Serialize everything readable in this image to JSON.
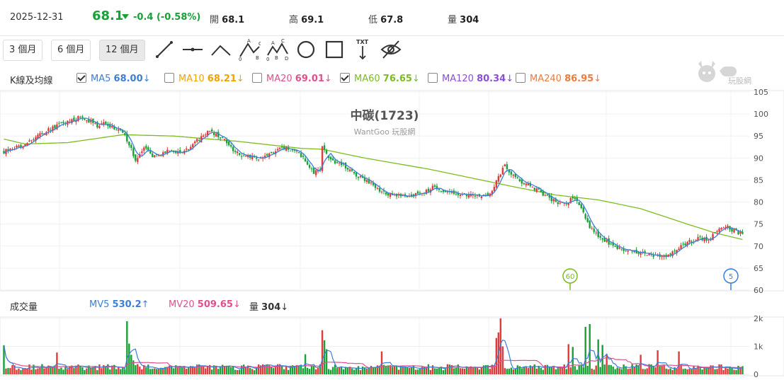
{
  "header": {
    "date": "2025-12-31",
    "price": "68.1",
    "change": "-0.4 (-0.58%)",
    "open_label": "開",
    "open": "68.1",
    "high_label": "高",
    "high": "69.1",
    "low_label": "低",
    "low": "67.8",
    "volume_label": "量",
    "volume": "304",
    "down_color": "#1aa037",
    "up_color": "#e03b3b"
  },
  "toolbar": {
    "ranges": [
      "3 個月",
      "6 個月",
      "12 個月"
    ],
    "active_range": "12 個月",
    "tools": [
      "line-icon",
      "horizontal-line-icon",
      "trend-angle-icon",
      "abc-pattern-icon",
      "abcd-pattern-icon",
      "circle-icon",
      "rectangle-icon",
      "text-arrow-icon",
      "hide-icon"
    ],
    "abc_letters": [
      "A",
      "0",
      "B",
      "C"
    ],
    "abcd_letters": [
      "A",
      "C",
      "0",
      "B",
      "D"
    ],
    "text_tool_label": "TXT"
  },
  "logo_text": "玩股網",
  "ma_panel": {
    "title": "K線及均線",
    "items": [
      {
        "label": "MA5",
        "value": "68.00",
        "arrow": "↓",
        "checked": true,
        "color": "#3b7fd8"
      },
      {
        "label": "MA10",
        "value": "68.21",
        "arrow": "↓",
        "checked": false,
        "color": "#f0a400"
      },
      {
        "label": "MA20",
        "value": "69.01",
        "arrow": "↓",
        "checked": false,
        "color": "#e0508f"
      },
      {
        "label": "MA60",
        "value": "76.65",
        "arrow": "↓",
        "checked": true,
        "color": "#7cbd1e"
      },
      {
        "label": "MA120",
        "value": "80.34",
        "arrow": "↓",
        "checked": false,
        "color": "#8a4fd6"
      },
      {
        "label": "MA240",
        "value": "86.95",
        "arrow": "↓",
        "checked": false,
        "color": "#f07a3a"
      }
    ]
  },
  "volume_panel": {
    "title": "成交量",
    "items": [
      {
        "label": "MV5",
        "value": "530.2",
        "arrow": "↑",
        "color": "#3b7fd8"
      },
      {
        "label": "MV20",
        "value": "509.65",
        "arrow": "↓",
        "color": "#e0508f"
      },
      {
        "label": "量",
        "value": "304",
        "arrow": "↓",
        "color": "#333333"
      }
    ]
  },
  "chart_data": {
    "type": "candlestick",
    "title": "中碳(1723)",
    "subtitle": "WantGoo 玩股網",
    "price_axis": {
      "ticks": [
        105,
        100,
        95,
        90,
        85,
        80,
        75,
        70,
        65,
        60
      ],
      "ylim": [
        60,
        105
      ]
    },
    "volume_axis": {
      "ticks": [
        "2k",
        "1k",
        "0"
      ],
      "ylim": [
        0,
        2000
      ]
    },
    "grid": true,
    "markers": [
      {
        "label": "60",
        "color": "#7cbd1e"
      },
      {
        "label": "5",
        "color": "#3b7fd8"
      }
    ],
    "close_path": [
      [
        0,
        91.5
      ],
      [
        10,
        93
      ],
      [
        18,
        95.5
      ],
      [
        24,
        97.2
      ],
      [
        30,
        98.2
      ],
      [
        36,
        99.5
      ],
      [
        40,
        98.5
      ],
      [
        44,
        97.4
      ],
      [
        48,
        97.8
      ],
      [
        52,
        96.8
      ],
      [
        56,
        96
      ],
      [
        58,
        94
      ],
      [
        60,
        92
      ],
      [
        62,
        89.5
      ],
      [
        64,
        90.5
      ],
      [
        66,
        92.5
      ],
      [
        70,
        90.5
      ],
      [
        74,
        91
      ],
      [
        78,
        91.8
      ],
      [
        82,
        91.3
      ],
      [
        86,
        91.8
      ],
      [
        90,
        93.5
      ],
      [
        96,
        95.8
      ],
      [
        100,
        95.4
      ],
      [
        104,
        94.2
      ],
      [
        108,
        92
      ],
      [
        112,
        90.5
      ],
      [
        118,
        90.2
      ],
      [
        122,
        90
      ],
      [
        126,
        91.5
      ],
      [
        130,
        92
      ],
      [
        134,
        92.2
      ],
      [
        138,
        91.8
      ],
      [
        142,
        89.3
      ],
      [
        146,
        86.8
      ],
      [
        149,
        87
      ],
      [
        150,
        93
      ],
      [
        152,
        91
      ],
      [
        154,
        89.5
      ],
      [
        156,
        88.8
      ],
      [
        160,
        88.3
      ],
      [
        166,
        86
      ],
      [
        172,
        84.5
      ],
      [
        176,
        83
      ],
      [
        180,
        81.8
      ],
      [
        190,
        81.5
      ],
      [
        198,
        82.2
      ],
      [
        202,
        83.5
      ],
      [
        206,
        82.5
      ],
      [
        212,
        82
      ],
      [
        222,
        81.5
      ],
      [
        228,
        81.8
      ],
      [
        230,
        82.2
      ],
      [
        232,
        85
      ],
      [
        234,
        86.5
      ],
      [
        236,
        88.5
      ],
      [
        238,
        86.5
      ],
      [
        240,
        86
      ],
      [
        244,
        84.5
      ],
      [
        248,
        83.7
      ],
      [
        252,
        82.5
      ],
      [
        258,
        80.5
      ],
      [
        264,
        79.5
      ],
      [
        268,
        80.8
      ],
      [
        272,
        79
      ],
      [
        274,
        76.5
      ],
      [
        276,
        74.5
      ],
      [
        280,
        72
      ],
      [
        286,
        70.5
      ],
      [
        290,
        69.5
      ],
      [
        294,
        69
      ],
      [
        300,
        68.5
      ],
      [
        306,
        68
      ],
      [
        310,
        67.5
      ],
      [
        314,
        68
      ],
      [
        318,
        69.5
      ],
      [
        322,
        70.8
      ],
      [
        328,
        71.8
      ],
      [
        332,
        71.5
      ],
      [
        334,
        72.5
      ],
      [
        336,
        73.5
      ],
      [
        340,
        74.5
      ],
      [
        342,
        74
      ],
      [
        344,
        73.5
      ],
      [
        346,
        73
      ],
      [
        348,
        72.8
      ]
    ],
    "ma60_path": [
      [
        0,
        94.3
      ],
      [
        10,
        93.2
      ],
      [
        30,
        93.5
      ],
      [
        56,
        95.3
      ],
      [
        80,
        95
      ],
      [
        110,
        93.8
      ],
      [
        140,
        92.2
      ],
      [
        150,
        92
      ],
      [
        170,
        90
      ],
      [
        200,
        87.5
      ],
      [
        220,
        85.5
      ],
      [
        240,
        83.5
      ],
      [
        260,
        81.6
      ],
      [
        280,
        80.5
      ],
      [
        300,
        78.5
      ],
      [
        320,
        75.3
      ],
      [
        335,
        73
      ],
      [
        348,
        71.5
      ]
    ],
    "volume_spikes": {
      "0": 1040,
      "25": 780,
      "58": 1900,
      "59": 1100,
      "60": 700,
      "61": 500,
      "142": 720,
      "150": 1580,
      "151": 1220,
      "152": 900,
      "178": 820,
      "232": 1300,
      "233": 1500,
      "234": 2000,
      "235": 1000,
      "266": 1080,
      "268": 980,
      "274": 1700,
      "276": 1800,
      "280": 1250,
      "282": 1050,
      "284": 720,
      "300": 700,
      "308": 860,
      "318": 820
    },
    "volume_base": 270,
    "mv5_base": 350,
    "mv20_base": 330
  }
}
